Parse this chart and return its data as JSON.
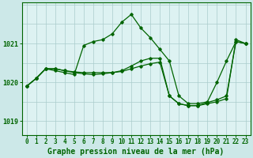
{
  "hours": [
    0,
    1,
    2,
    3,
    4,
    5,
    6,
    7,
    8,
    9,
    10,
    11,
    12,
    13,
    14,
    15,
    16,
    17,
    18,
    19,
    20,
    21,
    22,
    23
  ],
  "line1": [
    1019.9,
    1020.1,
    1020.35,
    1020.3,
    1020.25,
    1020.2,
    1020.95,
    1021.05,
    1021.1,
    1021.25,
    1021.55,
    1021.75,
    1021.4,
    1021.15,
    1020.85,
    1020.55,
    1019.65,
    1019.45,
    1019.45,
    1019.5,
    1020.0,
    1020.55,
    1021.05,
    1021.0
  ],
  "line2": [
    1019.9,
    1020.1,
    1020.35,
    1020.35,
    1020.3,
    1020.25,
    1020.22,
    1020.2,
    1020.22,
    1020.25,
    1020.3,
    1020.42,
    1020.55,
    1020.62,
    1020.62,
    1019.65,
    1019.45,
    1019.4,
    1019.4,
    1019.48,
    1019.55,
    1019.65,
    1021.05,
    1021.0
  ],
  "line3": [
    1019.9,
    1020.1,
    1020.35,
    1020.35,
    1020.3,
    1020.27,
    1020.25,
    1020.25,
    1020.25,
    1020.25,
    1020.28,
    1020.35,
    1020.42,
    1020.48,
    1020.52,
    1019.65,
    1019.45,
    1019.4,
    1019.4,
    1019.45,
    1019.5,
    1019.58,
    1021.1,
    1021.0
  ],
  "line_color": "#006400",
  "bg_color": "#cce8e8",
  "plot_bg": "#ddf2f2",
  "grid_color": "#aacccc",
  "xlabel": "Graphe pression niveau de la mer (hPa)",
  "xlabel_fontsize": 7,
  "tick_fontsize": 5.5,
  "ylabel_ticks": [
    1019,
    1020,
    1021
  ],
  "ylim": [
    1018.65,
    1022.05
  ],
  "xlim": [
    -0.5,
    23.5
  ]
}
